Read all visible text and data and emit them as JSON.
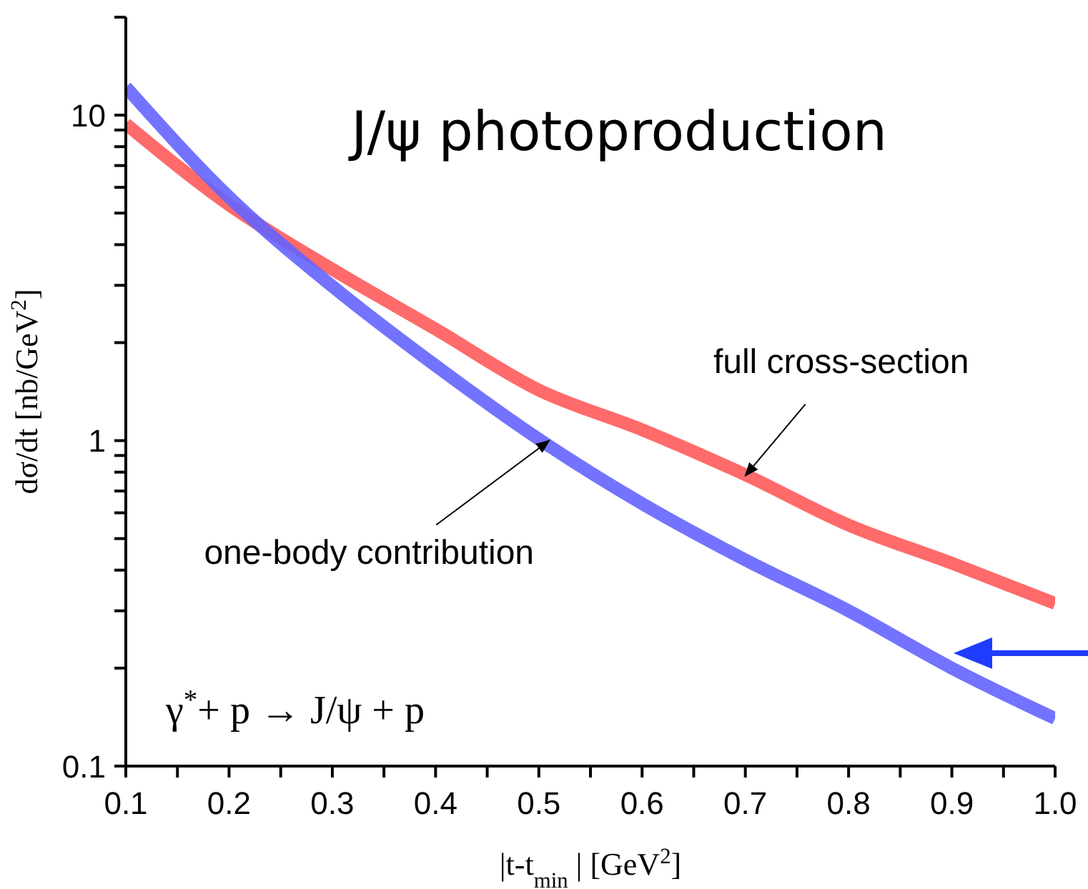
{
  "chart_data": {
    "type": "line",
    "title": "J/ψ photoproduction",
    "xlabel": "|t-t$_{min}$ | [GeV$^{2}$]",
    "ylabel": "dσ/dt [nb/GeV$^{2}$]",
    "x": [
      0.1,
      0.2,
      0.3,
      0.4,
      0.5,
      0.6,
      0.7,
      0.8,
      0.9,
      1.0
    ],
    "series": [
      {
        "color": "#ff5a5a",
        "values": [
          9.4,
          5.3,
          3.36,
          2.2,
          1.43,
          1.08,
          0.785,
          0.55,
          0.42,
          0.316
        ]
      },
      {
        "color": "#6464ff",
        "values": [
          12.2,
          5.6,
          2.98,
          1.7,
          1.01,
          0.64,
          0.43,
          0.3,
          0.2,
          0.14
        ]
      }
    ],
    "log": "y",
    "xlim": [
      0.1,
      1.0
    ],
    "ylim": [
      0.1,
      20
    ],
    "xticks": [
      0.1,
      {
        "value": 0.15,
        "label": null
      },
      0.2,
      {
        "value": 0.25,
        "label": null
      },
      0.3,
      {
        "value": 0.35,
        "label": null
      },
      0.4,
      {
        "value": 0.45,
        "label": null
      },
      0.5,
      {
        "value": 0.55,
        "label": null
      },
      0.6,
      {
        "value": 0.65,
        "label": null
      },
      0.7,
      {
        "value": 0.75,
        "label": null
      },
      0.8,
      {
        "value": 0.85,
        "label": null
      },
      0.9,
      {
        "value": 0.95,
        "label": null
      },
      {
        "value": 1.0,
        "label": "1.0"
      }
    ],
    "yticks": [
      0.1,
      {
        "value": 0.2,
        "label": null
      },
      {
        "value": 0.3,
        "label": null
      },
      {
        "value": 0.4,
        "label": null
      },
      {
        "value": 0.5,
        "label": null
      },
      {
        "value": 0.6,
        "label": null
      },
      {
        "value": 0.7,
        "label": null
      },
      {
        "value": 0.8,
        "label": null
      },
      {
        "value": 0.9,
        "label": null
      },
      1,
      {
        "value": 2,
        "label": null
      },
      {
        "value": 3,
        "label": null
      },
      {
        "value": 4,
        "label": null
      },
      {
        "value": 5,
        "label": null
      },
      {
        "value": 6,
        "label": null
      },
      {
        "value": 7,
        "label": null
      },
      {
        "value": 8,
        "label": null
      },
      {
        "value": 9,
        "label": null
      },
      10,
      {
        "value": 20,
        "label": null
      }
    ],
    "grid": false,
    "legend": false,
    "marker": "none",
    "line_style": "solid",
    "annotations": [
      {
        "text": "full cross-section",
        "x": 0.7,
        "y": 0.78
      },
      {
        "text": "one-body contribution",
        "x": 0.51,
        "y": 1.0
      },
      "γ$^{*}$+ p → J/ψ + p"
    ]
  }
}
